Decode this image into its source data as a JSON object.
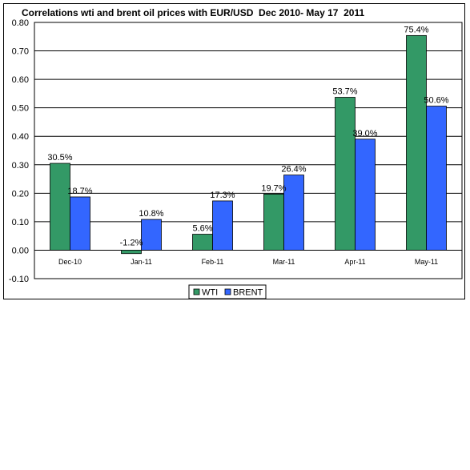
{
  "chart_data": {
    "type": "bar",
    "title": "Correlations wti and brent oil prices with EUR/USD  Dec 2010- May 17  2011",
    "categories": [
      "Dec-10",
      "Jan-11",
      "Feb-11",
      "Mar-11",
      "Apr-11",
      "May-11"
    ],
    "series": [
      {
        "name": "WTI",
        "color": "#339966",
        "values": [
          0.305,
          -0.012,
          0.056,
          0.197,
          0.537,
          0.754
        ],
        "labels": [
          "30.5%",
          "-1.2%",
          "5.6%",
          "19.7%",
          "53.7%",
          "75.4%"
        ]
      },
      {
        "name": "BRENT",
        "color": "#3366FF",
        "values": [
          0.187,
          0.108,
          0.173,
          0.264,
          0.39,
          0.506
        ],
        "labels": [
          "18.7%",
          "10.8%",
          "17.3%",
          "26.4%",
          "39.0%",
          "50.6%"
        ]
      }
    ],
    "ylim": [
      -0.1,
      0.8
    ],
    "yticks": [
      "0.80",
      "0.70",
      "0.60",
      "0.50",
      "0.40",
      "0.30",
      "0.20",
      "0.10",
      "0.00",
      "-0.10"
    ],
    "ytick_values": [
      0.8,
      0.7,
      0.6,
      0.5,
      0.4,
      0.3,
      0.2,
      0.1,
      0.0,
      -0.1
    ],
    "xlabel": "",
    "ylabel": "",
    "grid": true,
    "legend": "bottom"
  }
}
